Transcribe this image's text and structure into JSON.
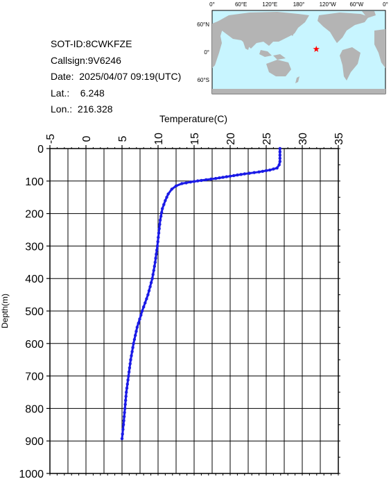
{
  "info": {
    "sot_id": "SOT-ID:8CWKFZE",
    "callsign": "Callsign:9V6246",
    "date": "Date:  2025/04/07 09:19(UTC)",
    "lat": "Lat.:    6.248",
    "lon": "Lon.:  216.328"
  },
  "map": {
    "top_labels": [
      "0°",
      "60°E",
      "120°E",
      "180°",
      "120°W",
      "60°W",
      "0°"
    ],
    "side_labels": [
      "60°N",
      "0°",
      "60°S"
    ],
    "ocean_color": "#c8f5ff",
    "land_color": "#b4b4b4",
    "marker_color": "#ff0000",
    "marker_lon": 216.328,
    "marker_lat": 6.248
  },
  "chart_data": {
    "type": "line",
    "title": "",
    "xlabel": "Temperature(C)",
    "ylabel": "Depth(m)",
    "xlim": [
      -5,
      35
    ],
    "ylim": [
      1000,
      0
    ],
    "x_ticks": [
      "-5",
      "0",
      "5",
      "10",
      "15",
      "20",
      "25",
      "30",
      "35"
    ],
    "y_ticks": [
      "0",
      "100",
      "200",
      "300",
      "400",
      "500",
      "600",
      "700",
      "800",
      "900",
      "1000"
    ],
    "grid": true,
    "series_color": "#1a1ae6",
    "profile": [
      {
        "t": 26.9,
        "d": 0
      },
      {
        "t": 26.9,
        "d": 20
      },
      {
        "t": 26.9,
        "d": 40
      },
      {
        "t": 26.8,
        "d": 50
      },
      {
        "t": 26.5,
        "d": 60
      },
      {
        "t": 25.5,
        "d": 66
      },
      {
        "t": 24.0,
        "d": 72
      },
      {
        "t": 22.0,
        "d": 78
      },
      {
        "t": 20.0,
        "d": 85
      },
      {
        "t": 18.0,
        "d": 92
      },
      {
        "t": 16.0,
        "d": 98
      },
      {
        "t": 14.5,
        "d": 103
      },
      {
        "t": 13.3,
        "d": 108
      },
      {
        "t": 12.5,
        "d": 115
      },
      {
        "t": 11.9,
        "d": 125
      },
      {
        "t": 11.4,
        "d": 140
      },
      {
        "t": 11.0,
        "d": 160
      },
      {
        "t": 10.6,
        "d": 185
      },
      {
        "t": 10.3,
        "d": 220
      },
      {
        "t": 10.1,
        "d": 260
      },
      {
        "t": 9.9,
        "d": 300
      },
      {
        "t": 9.6,
        "d": 350
      },
      {
        "t": 9.2,
        "d": 400
      },
      {
        "t": 8.6,
        "d": 450
      },
      {
        "t": 7.8,
        "d": 500
      },
      {
        "t": 7.1,
        "d": 550
      },
      {
        "t": 6.6,
        "d": 600
      },
      {
        "t": 6.2,
        "d": 650
      },
      {
        "t": 5.9,
        "d": 700
      },
      {
        "t": 5.6,
        "d": 750
      },
      {
        "t": 5.4,
        "d": 800
      },
      {
        "t": 5.2,
        "d": 850
      },
      {
        "t": 5.0,
        "d": 893
      }
    ]
  }
}
